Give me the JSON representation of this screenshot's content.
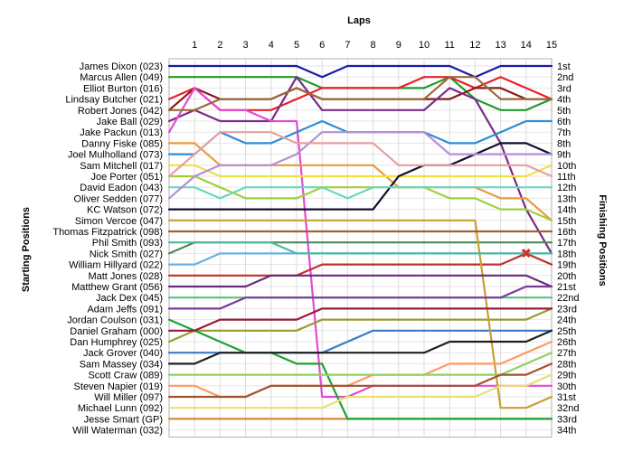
{
  "chart_data": {
    "type": "line",
    "title": "Laps",
    "ylabel_left": "Starting Positions",
    "ylabel_right": "Finishing Positions",
    "x": [
      0,
      1,
      2,
      3,
      4,
      5,
      6,
      7,
      8,
      9,
      10,
      11,
      12,
      13,
      14,
      15
    ],
    "x_tick_labels": [
      "1",
      "2",
      "3",
      "4",
      "5",
      "6",
      "7",
      "8",
      "9",
      "10",
      "11",
      "12",
      "13",
      "14",
      "15"
    ],
    "starting_positions": [
      "James Dixon (023)",
      "Marcus Allen (049)",
      "Elliot Burton (016)",
      "Lindsay Butcher (021)",
      "Robert Jones (042)",
      "Jake Ball (029)",
      "Jake Packun (013)",
      "Danny Fiske (085)",
      "Joel Mulholland (073)",
      "Sam Mitchell (017)",
      "Joe Porter (051)",
      "David Eadon (043)",
      "Oliver Sedden (077)",
      "KC Watson (072)",
      "Simon Vercoe (047)",
      "Thomas Fitzpatrick (098)",
      "Phil Smith (093)",
      "Nick Smith (027)",
      "William Hillyard (022)",
      "Matt Jones (028)",
      "Matthew Grant (056)",
      "Jack Dex (045)",
      "Adam Jeffs (091)",
      "Jordan Coulson (031)",
      "Daniel Graham (000)",
      "Dan Humphrey (025)",
      "Jack Grover (040)",
      "Sam Massey (034)",
      "Scott Craw (089)",
      "Steven Napier (019)",
      "Will Miller (097)",
      "Michael Lunn (092)",
      "Jesse Smart (GP)",
      "Will Waterman (032)"
    ],
    "finishing_positions": [
      "1st",
      "2nd",
      "3rd",
      "4th",
      "5th",
      "6th",
      "7th",
      "8th",
      "9th",
      "10th",
      "11th",
      "12th",
      "13th",
      "14th",
      "15th",
      "16th",
      "17th",
      "18th",
      "19th",
      "20th",
      "21st",
      "22nd",
      "23rd",
      "24th",
      "25th",
      "26th",
      "27th",
      "28th",
      "29th",
      "30th",
      "31st",
      "32nd",
      "33rd",
      "34th"
    ],
    "ylim": [
      1,
      34
    ],
    "grid": true,
    "retired_marker": {
      "lap": 14,
      "position": 18,
      "symbol": "✖",
      "color": "#d32f2f"
    },
    "series": [
      {
        "color": "#1a1aa6",
        "positions": [
          1,
          1,
          1,
          1,
          1,
          1,
          2,
          1,
          1,
          1,
          1,
          1,
          2,
          1,
          1,
          1
        ]
      },
      {
        "color": "#1f9a2a",
        "positions": [
          2,
          2,
          2,
          2,
          2,
          2,
          3,
          3,
          3,
          3,
          3,
          2,
          4,
          5,
          5,
          4
        ]
      },
      {
        "color": "#e8202a",
        "positions": [
          4,
          3,
          5,
          5,
          5,
          4,
          3,
          3,
          3,
          3,
          2,
          2,
          3,
          2,
          3,
          4
        ]
      },
      {
        "color": "#8b1a1a",
        "positions": [
          5,
          3,
          4,
          4,
          4,
          3,
          4,
          4,
          4,
          4,
          4,
          4,
          3,
          3,
          4,
          4
        ]
      },
      {
        "color": "#7a2a8a",
        "positions": [
          6,
          5,
          6,
          6,
          6,
          2,
          5,
          5,
          5,
          5,
          5,
          3,
          4,
          8,
          14,
          18
        ]
      },
      {
        "color": "#e24ad6",
        "positions": [
          7,
          3,
          5,
          5,
          6,
          6,
          31,
          31,
          30,
          30,
          30,
          30,
          30,
          30,
          30,
          30
        ]
      },
      {
        "color": "#9b6a3a",
        "positions": [
          5,
          5,
          4,
          4,
          4,
          3,
          4,
          4,
          4,
          4,
          4,
          2,
          2,
          4,
          4,
          4
        ]
      },
      {
        "color": "#e89a40",
        "positions": [
          8,
          8,
          10,
          10,
          10,
          10,
          10,
          10,
          10,
          12,
          12,
          12,
          12,
          13,
          13,
          15
        ]
      },
      {
        "color": "#2e8bd6",
        "positions": [
          9,
          9,
          7,
          8,
          8,
          7,
          6,
          7,
          7,
          7,
          7,
          8,
          8,
          7,
          6,
          6
        ]
      },
      {
        "color": "#f0e040",
        "positions": [
          10,
          10,
          11,
          11,
          11,
          11,
          11,
          11,
          11,
          11,
          11,
          11,
          11,
          11,
          11,
          10
        ]
      },
      {
        "color": "#9fd03a",
        "positions": [
          11,
          11,
          12,
          13,
          13,
          13,
          12,
          12,
          12,
          12,
          12,
          13,
          13,
          14,
          14,
          15
        ]
      },
      {
        "color": "#101030",
        "positions": [
          14,
          14,
          14,
          14,
          14,
          14,
          14,
          14,
          14,
          11,
          10,
          10,
          9,
          8,
          8,
          9
        ]
      },
      {
        "color": "#6ad6c0",
        "positions": [
          12,
          12,
          13,
          12,
          12,
          12,
          12,
          13,
          12,
          12,
          12,
          12,
          12,
          12,
          12,
          12
        ]
      },
      {
        "color": "#b58fd6",
        "positions": [
          13,
          11,
          10,
          10,
          10,
          9,
          7,
          7,
          7,
          7,
          7,
          9,
          9,
          9,
          9,
          9
        ]
      },
      {
        "color": "#e6a0a0",
        "positions": [
          11,
          9,
          7,
          7,
          7,
          8,
          8,
          8,
          8,
          10,
          10,
          10,
          10,
          10,
          10,
          11
        ]
      },
      {
        "color": "#4a8a5a",
        "positions": [
          18,
          17,
          17,
          17,
          17,
          17,
          17,
          17,
          17,
          17,
          17,
          17,
          17,
          17,
          17,
          17
        ]
      },
      {
        "color": "#c0302a",
        "positions": [
          20,
          20,
          20,
          20,
          20,
          20,
          19,
          19,
          19,
          19,
          19,
          19,
          19,
          19,
          18,
          19
        ]
      },
      {
        "color": "#9a9a30",
        "positions": [
          26,
          25,
          25,
          25,
          25,
          25,
          24,
          24,
          24,
          24,
          24,
          24,
          24,
          24,
          24,
          23
        ]
      },
      {
        "color": "#5ac080",
        "positions": [
          22,
          22,
          22,
          22,
          22,
          22,
          22,
          22,
          22,
          22,
          22,
          22,
          22,
          22,
          22,
          22
        ]
      },
      {
        "color": "#3a7acb",
        "positions": [
          27,
          27,
          27,
          27,
          27,
          27,
          27,
          26,
          25,
          25,
          25,
          25,
          25,
          25,
          25,
          25
        ]
      },
      {
        "color": "#d08a3a",
        "positions": [
          33,
          33,
          33,
          33,
          33,
          33,
          33,
          33,
          33,
          33,
          33,
          33,
          33,
          33,
          33,
          33
        ]
      },
      {
        "color": "#20a030",
        "positions": [
          24,
          25,
          26,
          27,
          27,
          28,
          28,
          33,
          33,
          33,
          33,
          33,
          33,
          33,
          33,
          33
        ]
      },
      {
        "color": "#c8a030",
        "positions": [
          15,
          15,
          15,
          15,
          15,
          15,
          15,
          15,
          15,
          15,
          15,
          15,
          15,
          32,
          32,
          31
        ]
      },
      {
        "color": "#6a2a7a",
        "positions": [
          21,
          21,
          21,
          21,
          20,
          20,
          20,
          20,
          20,
          20,
          20,
          20,
          20,
          20,
          20,
          21
        ]
      },
      {
        "color": "#202020",
        "positions": [
          28,
          28,
          27,
          27,
          27,
          27,
          27,
          27,
          27,
          27,
          27,
          26,
          26,
          26,
          26,
          25
        ]
      },
      {
        "color": "#a06030",
        "positions": [
          16,
          16,
          16,
          16,
          16,
          16,
          16,
          16,
          16,
          16,
          16,
          16,
          16,
          16,
          16,
          16
        ]
      },
      {
        "color": "#ff9a60",
        "positions": [
          30,
          30,
          31,
          31,
          30,
          30,
          30,
          30,
          29,
          29,
          29,
          28,
          28,
          28,
          27,
          26
        ]
      },
      {
        "color": "#6ab0e0",
        "positions": [
          19,
          19,
          18,
          18,
          18,
          18,
          18,
          18,
          18,
          18,
          18,
          18,
          18,
          18,
          18,
          18
        ]
      },
      {
        "color": "#90d060",
        "positions": [
          29,
          29,
          29,
          29,
          29,
          29,
          29,
          29,
          29,
          29,
          29,
          29,
          29,
          29,
          28,
          27
        ]
      },
      {
        "color": "#7a3a9a",
        "positions": [
          23,
          23,
          23,
          22,
          22,
          22,
          22,
          22,
          22,
          22,
          22,
          22,
          22,
          22,
          21,
          21
        ]
      },
      {
        "color": "#50b8a0",
        "positions": [
          17,
          17,
          17,
          17,
          17,
          18,
          18,
          18,
          18,
          18,
          18,
          18,
          18,
          18,
          18,
          18
        ]
      },
      {
        "color": "#a0522d",
        "positions": [
          31,
          31,
          31,
          31,
          30,
          30,
          30,
          30,
          30,
          30,
          30,
          30,
          30,
          29,
          29,
          28
        ]
      },
      {
        "color": "#e8e070",
        "positions": [
          32,
          32,
          32,
          32,
          32,
          32,
          32,
          31,
          31,
          31,
          31,
          31,
          31,
          30,
          30,
          29
        ]
      },
      {
        "color": "#9a1a3a",
        "positions": [
          25,
          25,
          24,
          24,
          24,
          24,
          23,
          23,
          23,
          23,
          23,
          23,
          23,
          23,
          23,
          23
        ]
      }
    ]
  }
}
